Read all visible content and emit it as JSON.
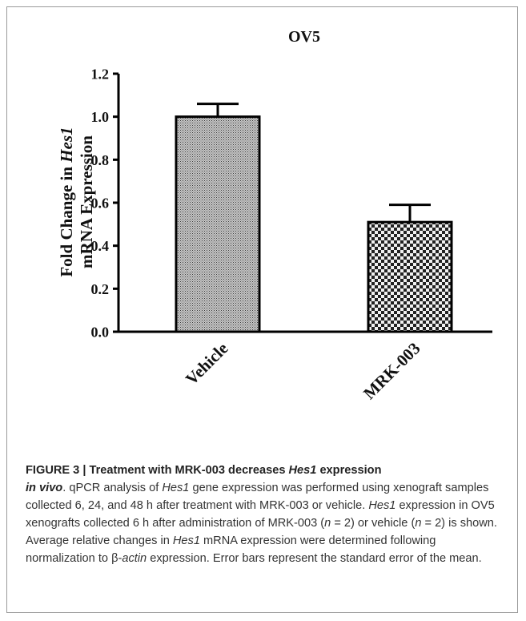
{
  "chart_data": {
    "type": "bar",
    "title": "OV5",
    "ylabel_line1_prefix": "Fold Change in ",
    "ylabel_line1_gene": "Hes1",
    "ylabel_line2": "mRNA Expression",
    "categories": [
      "Vehicle",
      "MRK-003"
    ],
    "values": [
      1.0,
      0.51
    ],
    "errors": [
      0.06,
      0.08
    ],
    "ylim": [
      0,
      1.2
    ],
    "yticks": [
      "0.0",
      "0.2",
      "0.4",
      "0.6",
      "0.8",
      "1.0",
      "1.2"
    ],
    "fills": [
      "fine-stipple",
      "checkerboard"
    ],
    "grid": false,
    "legend": "none"
  },
  "caption": {
    "figure_label": "FIGURE 3 | ",
    "head_part1": "Treatment with MRK-003 decreases ",
    "head_gene": "Hes1",
    "head_part2": " expression",
    "head_part3": "in vivo",
    "s1": ". qPCR analysis of ",
    "s1_gene": "Hes1",
    "s2": " gene expression was performed using xenograft samples collected 6, 24, and 48 h after treatment with MRK-003 or vehicle. ",
    "s2_gene": "Hes1",
    "s3": " expression in OV5 xenografts collected 6 h after administration of MRK-003 (",
    "n1": "n",
    "s4": " = 2) or vehicle (",
    "n2": "n",
    "s5": " = 2) is shown. Average relative changes in ",
    "s5_gene": "Hes1",
    "s6": " mRNA expression were determined following normalization to β-",
    "s6_gene": "actin",
    "s7": " expression. Error bars represent the standard error of the mean."
  }
}
